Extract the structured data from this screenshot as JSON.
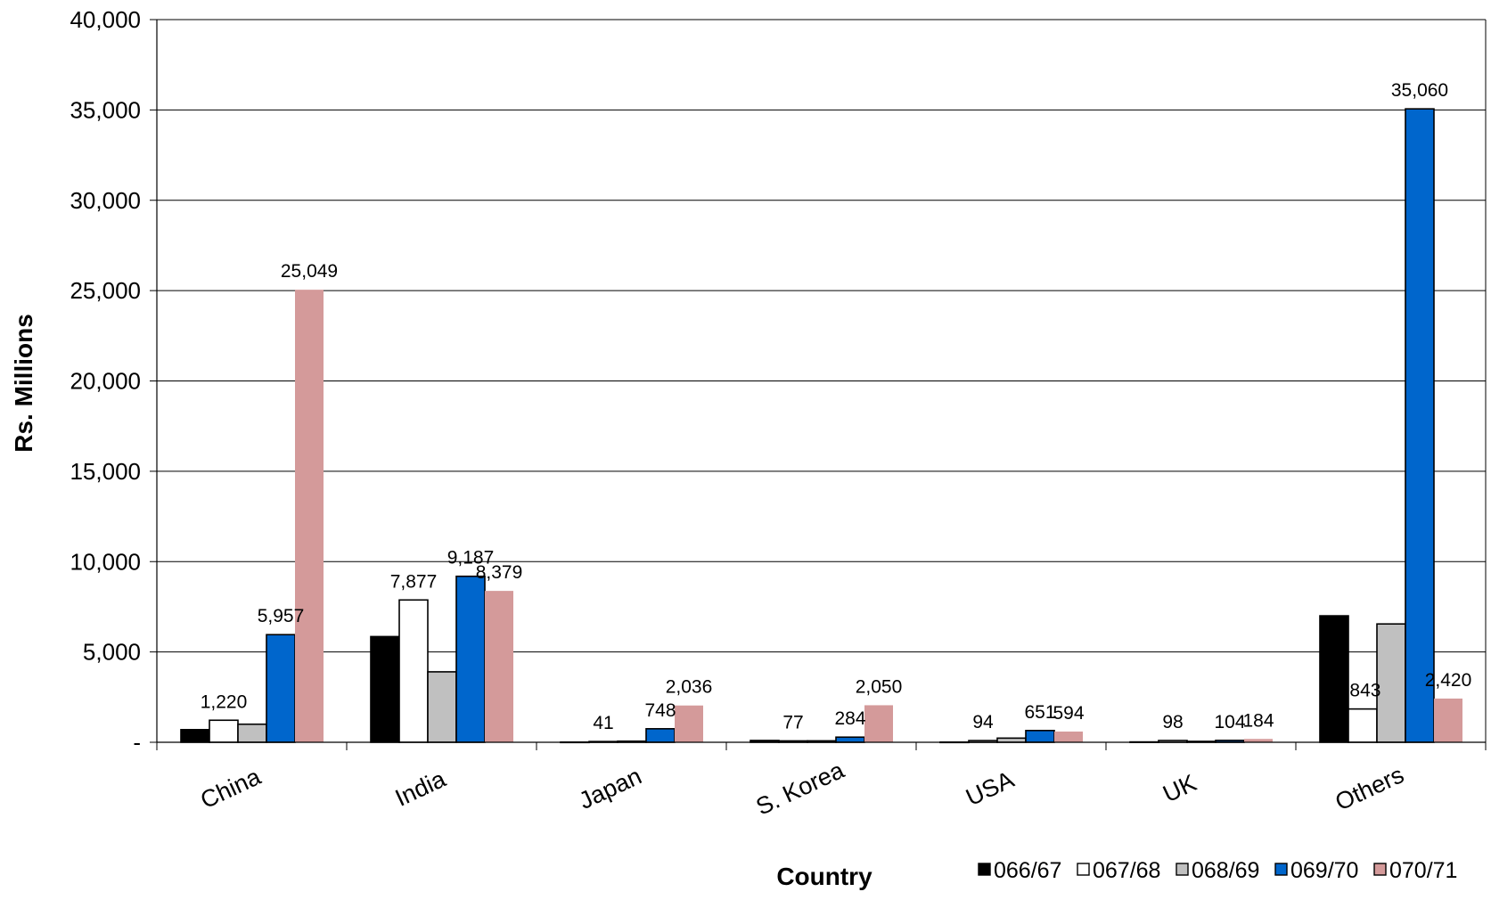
{
  "chart_data": {
    "type": "bar",
    "xlabel": "Country",
    "ylabel": "Rs. Millions",
    "ylim": [
      0,
      40000
    ],
    "y_ticks": [
      {
        "value": 0,
        "label": "-"
      },
      {
        "value": 5000,
        "label": "5,000"
      },
      {
        "value": 10000,
        "label": "10,000"
      },
      {
        "value": 15000,
        "label": "15,000"
      },
      {
        "value": 20000,
        "label": "20,000"
      },
      {
        "value": 25000,
        "label": "25,000"
      },
      {
        "value": 30000,
        "label": "30,000"
      },
      {
        "value": 35000,
        "label": "35,000"
      },
      {
        "value": 40000,
        "label": "40,000"
      }
    ],
    "grid": true,
    "legend_position": "bottom-right",
    "categories": [
      "China",
      "India",
      "Japan",
      "S. Korea",
      "USA",
      "UK",
      "Others"
    ],
    "series": [
      {
        "name": "066/67",
        "color": "#000000",
        "values": [
          700,
          5850,
          10,
          100,
          10,
          20,
          7000
        ]
      },
      {
        "name": "067/68",
        "color": "#ffffff",
        "values": [
          1220,
          7877,
          41,
          77,
          94,
          98,
          1843
        ]
      },
      {
        "name": "068/69",
        "color": "#c0c0c0",
        "values": [
          1000,
          3900,
          60,
          80,
          230,
          50,
          6550
        ]
      },
      {
        "name": "069/70",
        "color": "#0066cc",
        "values": [
          5957,
          9187,
          748,
          284,
          651,
          104,
          35060
        ]
      },
      {
        "name": "070/71",
        "color": "#d49a9a",
        "values": [
          25049,
          8379,
          2036,
          2050,
          594,
          184,
          2420
        ]
      }
    ],
    "data_labels": [
      {
        "category": 0,
        "series": 1,
        "text": "1,220"
      },
      {
        "category": 0,
        "series": 3,
        "text": "5,957"
      },
      {
        "category": 0,
        "series": 4,
        "text": "25,049"
      },
      {
        "category": 1,
        "series": 1,
        "text": "7,877"
      },
      {
        "category": 1,
        "series": 3,
        "text": "9,187"
      },
      {
        "category": 1,
        "series": 4,
        "text": "8,379"
      },
      {
        "category": 2,
        "series": 1,
        "text": "41"
      },
      {
        "category": 2,
        "series": 3,
        "text": "748"
      },
      {
        "category": 2,
        "series": 4,
        "text": "2,036"
      },
      {
        "category": 3,
        "series": 1,
        "text": "77"
      },
      {
        "category": 3,
        "series": 3,
        "text": "284"
      },
      {
        "category": 3,
        "series": 4,
        "text": "2,050"
      },
      {
        "category": 4,
        "series": 1,
        "text": "94"
      },
      {
        "category": 4,
        "series": 3,
        "text": "651"
      },
      {
        "category": 4,
        "series": 4,
        "text": "594"
      },
      {
        "category": 5,
        "series": 1,
        "text": "98"
      },
      {
        "category": 5,
        "series": 3,
        "text": "104"
      },
      {
        "category": 5,
        "series": 4,
        "text": "184"
      },
      {
        "category": 6,
        "series": 1,
        "text": ",843"
      },
      {
        "category": 6,
        "series": 3,
        "text": "35,060"
      },
      {
        "category": 6,
        "series": 4,
        "text": "2,420"
      }
    ]
  }
}
